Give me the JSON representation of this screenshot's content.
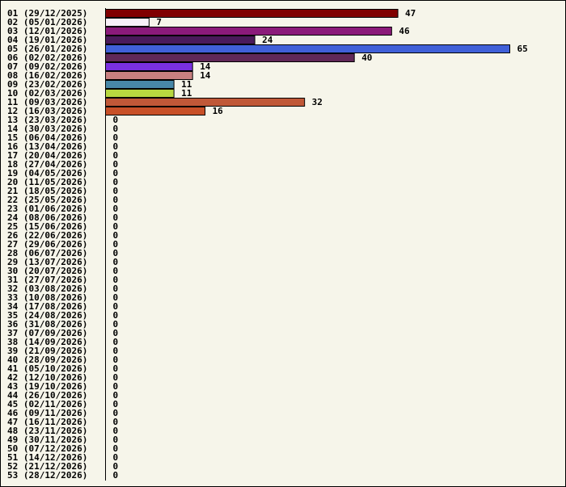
{
  "chart_data": {
    "type": "bar",
    "orientation": "horizontal",
    "categories": [
      "01 (29/12/2025)",
      "02 (05/01/2026)",
      "03 (12/01/2026)",
      "04 (19/01/2026)",
      "05 (26/01/2026)",
      "06 (02/02/2026)",
      "07 (09/02/2026)",
      "08 (16/02/2026)",
      "09 (23/02/2026)",
      "10 (02/03/2026)",
      "11 (09/03/2026)",
      "12 (16/03/2026)",
      "13 (23/03/2026)",
      "14 (30/03/2026)",
      "15 (06/04/2026)",
      "16 (13/04/2026)",
      "17 (20/04/2026)",
      "18 (27/04/2026)",
      "19 (04/05/2026)",
      "20 (11/05/2026)",
      "21 (18/05/2026)",
      "22 (25/05/2026)",
      "23 (01/06/2026)",
      "24 (08/06/2026)",
      "25 (15/06/2026)",
      "26 (22/06/2026)",
      "27 (29/06/2026)",
      "28 (06/07/2026)",
      "29 (13/07/2026)",
      "30 (20/07/2026)",
      "31 (27/07/2026)",
      "32 (03/08/2026)",
      "33 (10/08/2026)",
      "34 (17/08/2026)",
      "35 (24/08/2026)",
      "36 (31/08/2026)",
      "37 (07/09/2026)",
      "38 (14/09/2026)",
      "39 (21/09/2026)",
      "40 (28/09/2026)",
      "41 (05/10/2026)",
      "42 (12/10/2026)",
      "43 (19/10/2026)",
      "44 (26/10/2026)",
      "45 (02/11/2026)",
      "46 (09/11/2026)",
      "47 (16/11/2026)",
      "48 (23/11/2026)",
      "49 (30/11/2026)",
      "50 (07/12/2026)",
      "51 (14/12/2026)",
      "52 (21/12/2026)",
      "53 (28/12/2026)"
    ],
    "values": [
      47,
      7,
      46,
      24,
      65,
      40,
      14,
      14,
      11,
      11,
      32,
      16,
      0,
      0,
      0,
      0,
      0,
      0,
      0,
      0,
      0,
      0,
      0,
      0,
      0,
      0,
      0,
      0,
      0,
      0,
      0,
      0,
      0,
      0,
      0,
      0,
      0,
      0,
      0,
      0,
      0,
      0,
      0,
      0,
      0,
      0,
      0,
      0,
      0,
      0,
      0,
      0,
      0
    ],
    "colors": [
      "#800000",
      "#f8f0f8",
      "#8b1a7a",
      "#4a1a5a",
      "#4060d8",
      "#602858",
      "#7a30e0",
      "#c88080",
      "#4888a8",
      "#b8d840",
      "#c05838",
      "#c85028"
    ],
    "xlim": [
      0,
      65
    ],
    "title": "",
    "xlabel": "",
    "ylabel": "",
    "grid": false,
    "legend": "none"
  }
}
